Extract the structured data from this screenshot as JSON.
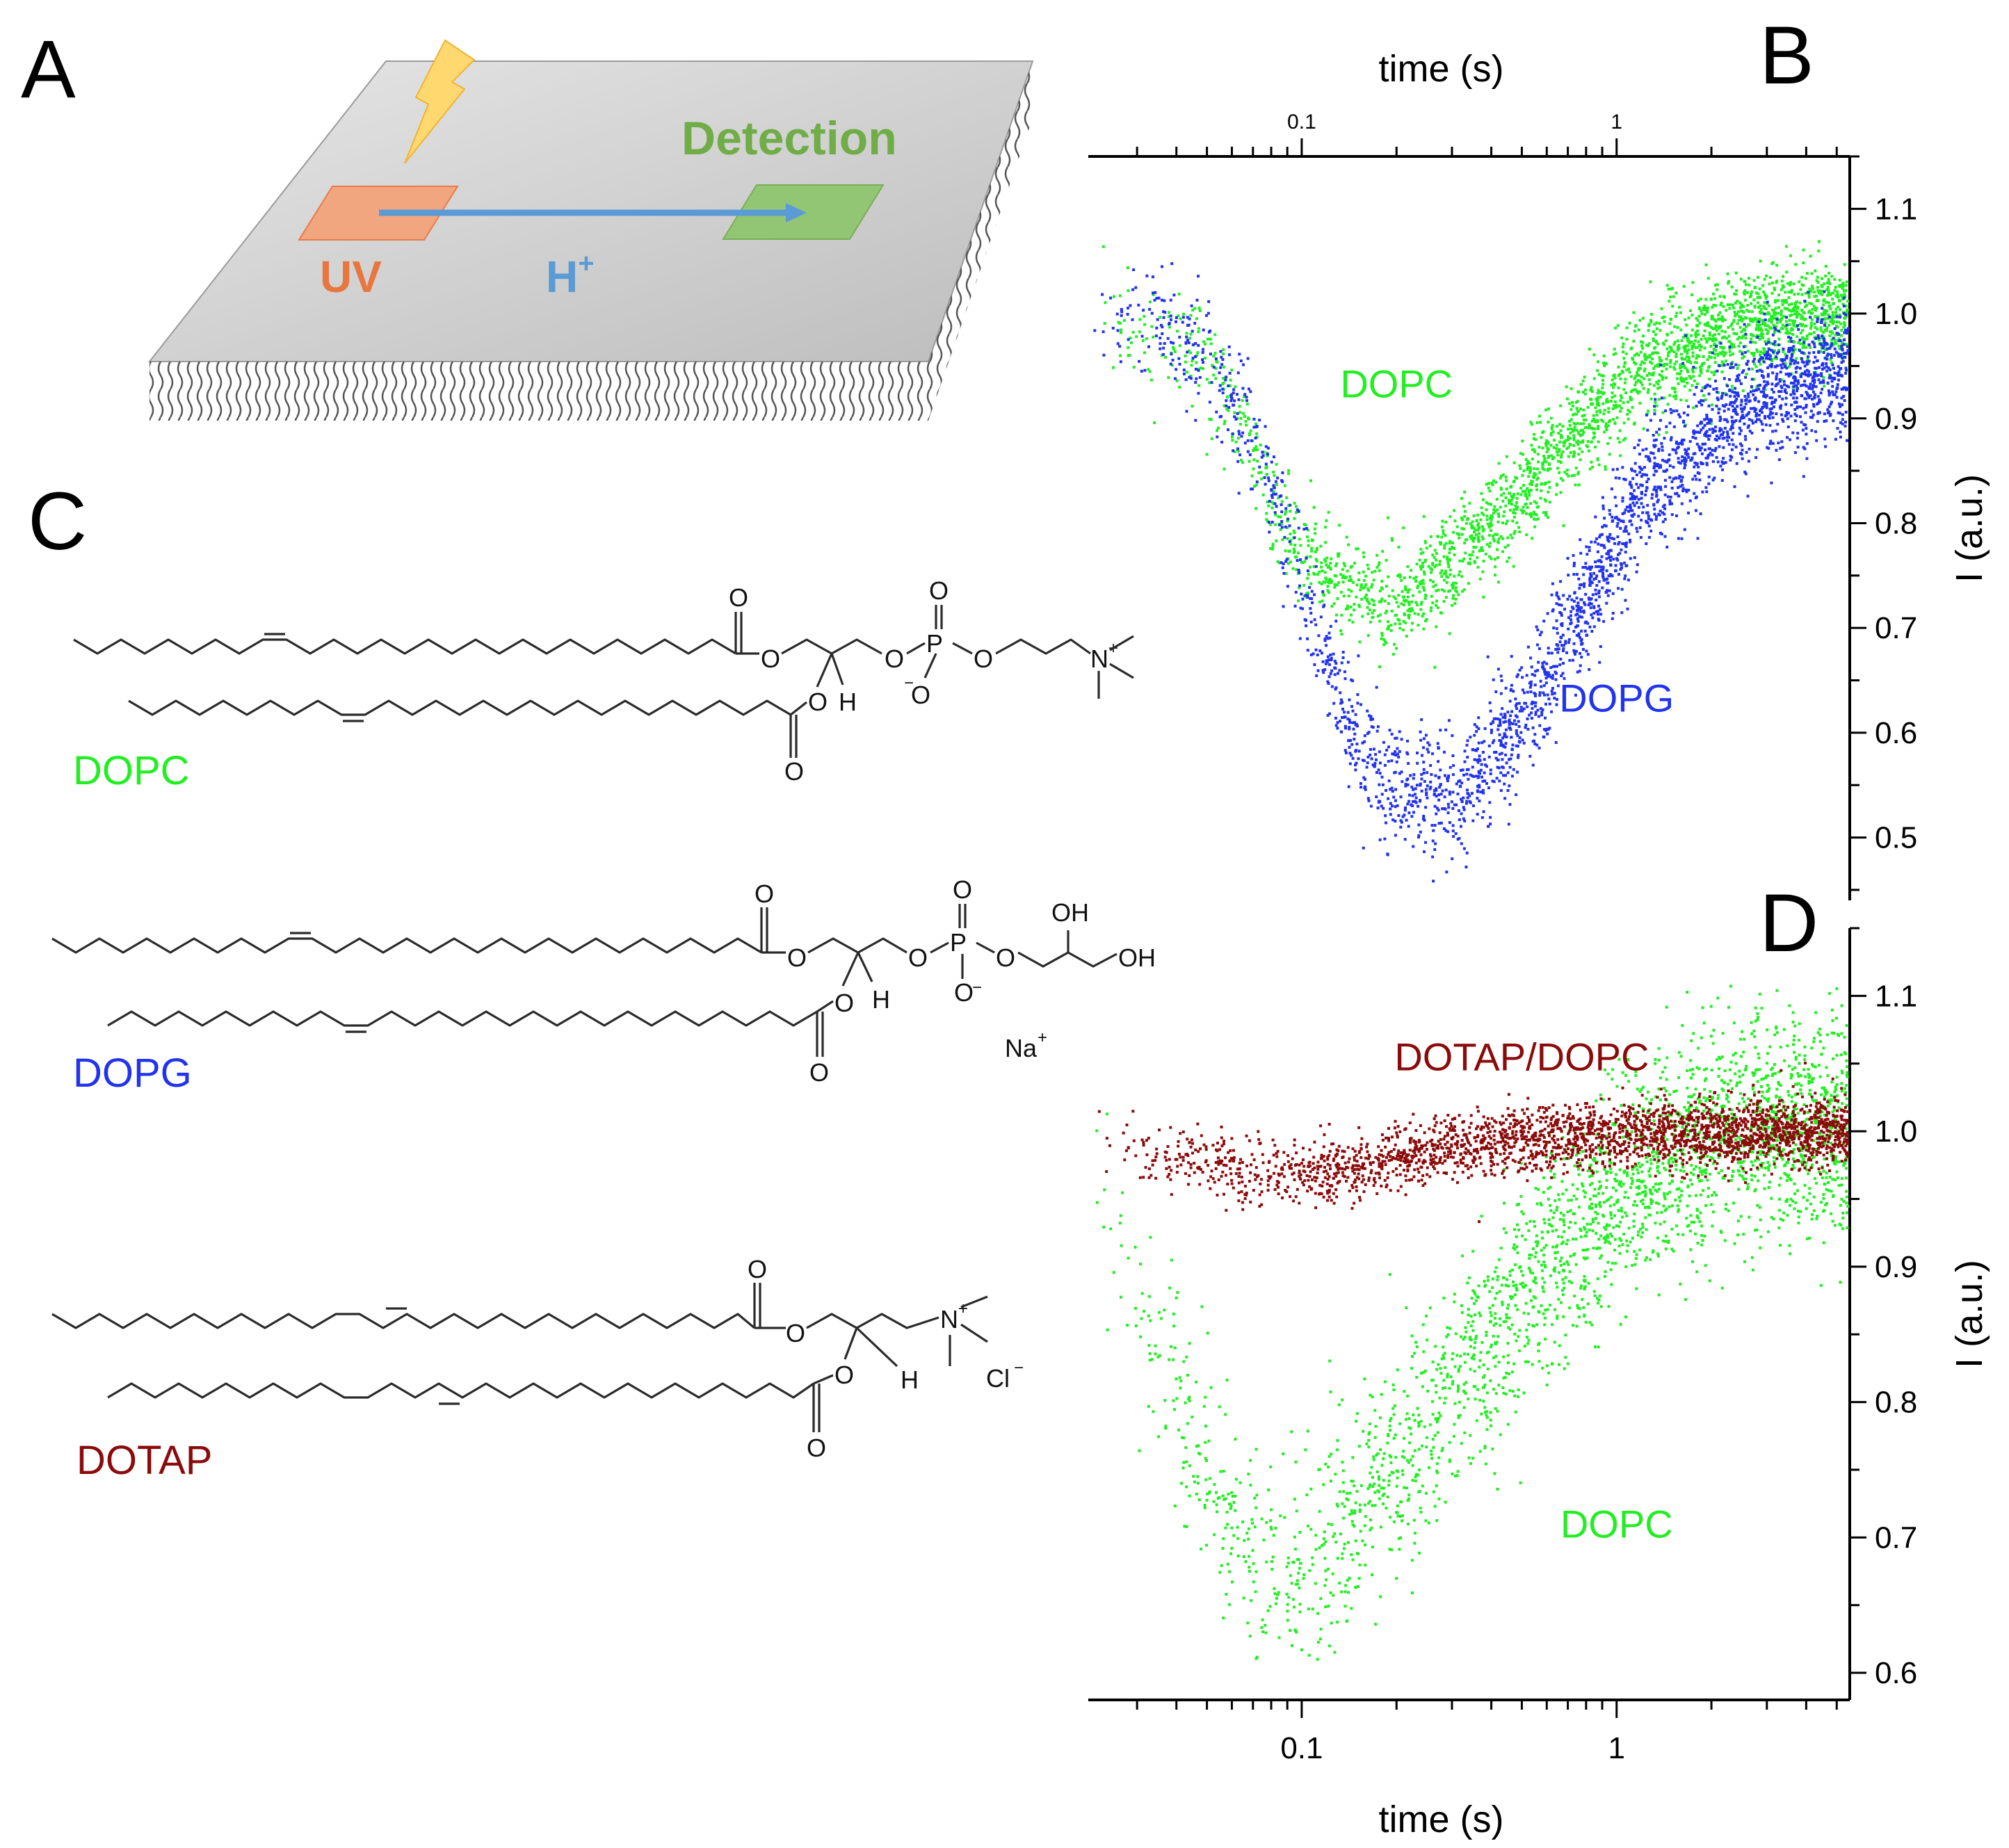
{
  "panels": {
    "a": "A",
    "b": "B",
    "c": "C",
    "d": "D"
  },
  "schematic": {
    "uv_label": "UV",
    "proton_label": "H",
    "proton_charge": "+",
    "detection_label": "Detection",
    "colors": {
      "uv": "#e8773f",
      "proton": "#5b9bd5",
      "detection": "#70ad47",
      "bolt": "#ffcc4d"
    }
  },
  "structures": {
    "dopc": {
      "name": "DOPC",
      "color": "#22ee22"
    },
    "dopg": {
      "name": "DOPG",
      "color": "#2233ee"
    },
    "dotap": {
      "name": "DOTAP",
      "color": "#8b0a0a"
    },
    "atoms": {
      "O": "O",
      "H": "H",
      "P": "P",
      "N": "N",
      "OH": "OH",
      "Na": "Na",
      "Cl": "Cl",
      "plus": "+",
      "minus": "−"
    }
  },
  "chart_data": [
    {
      "id": "B",
      "type": "scatter",
      "x_scale": "log",
      "x_axis_position": "top",
      "y_axis_position": "right",
      "xlabel": "time (s)",
      "ylabel": "I (a.u.)",
      "xlim": [
        0.021,
        5.5
      ],
      "ylim": [
        0.44,
        1.15
      ],
      "xticks": [
        0.1,
        1
      ],
      "xtick_labels": [
        "0.1",
        "1"
      ],
      "yticks": [
        0.5,
        0.6,
        0.7,
        0.8,
        0.9,
        1.0,
        1.1
      ],
      "ytick_labels": [
        "0.5",
        "0.6",
        "0.7",
        "0.8",
        "0.9",
        "1.0",
        "1.1"
      ],
      "series": [
        {
          "name": "DOPC",
          "color": "#22ee22",
          "noise": 0.025,
          "points": [
            [
              0.021,
              1.0
            ],
            [
              0.03,
              0.99
            ],
            [
              0.045,
              0.97
            ],
            [
              0.06,
              0.91
            ],
            [
              0.08,
              0.82
            ],
            [
              0.1,
              0.77
            ],
            [
              0.15,
              0.735
            ],
            [
              0.2,
              0.725
            ],
            [
              0.3,
              0.76
            ],
            [
              0.5,
              0.83
            ],
            [
              0.8,
              0.9
            ],
            [
              1.2,
              0.95
            ],
            [
              2,
              0.98
            ],
            [
              3,
              0.995
            ],
            [
              5.5,
              1.0
            ]
          ]
        },
        {
          "name": "DOPG",
          "color": "#2233ee",
          "noise": 0.03,
          "points": [
            [
              0.021,
              1.0
            ],
            [
              0.035,
              0.99
            ],
            [
              0.05,
              0.96
            ],
            [
              0.07,
              0.88
            ],
            [
              0.09,
              0.78
            ],
            [
              0.12,
              0.67
            ],
            [
              0.15,
              0.59
            ],
            [
              0.2,
              0.55
            ],
            [
              0.3,
              0.54
            ],
            [
              0.5,
              0.61
            ],
            [
              0.8,
              0.73
            ],
            [
              1.2,
              0.83
            ],
            [
              2,
              0.89
            ],
            [
              3,
              0.93
            ],
            [
              5.5,
              0.95
            ]
          ]
        }
      ],
      "annotations": [
        {
          "text": "DOPC",
          "color": "#22ee22",
          "x": 0.2,
          "y": 0.92
        },
        {
          "text": "DOPG",
          "color": "#2233ee",
          "x": 1.0,
          "y": 0.62
        }
      ]
    },
    {
      "id": "D",
      "type": "scatter",
      "x_scale": "log",
      "x_axis_position": "bottom",
      "y_axis_position": "right",
      "xlabel": "time (s)",
      "ylabel": "I (a.u.)",
      "xlim": [
        0.021,
        5.5
      ],
      "ylim": [
        0.58,
        1.15
      ],
      "xticks": [
        0.1,
        1
      ],
      "xtick_labels": [
        "0.1",
        "1"
      ],
      "yticks": [
        0.6,
        0.7,
        0.8,
        0.9,
        1.0,
        1.1
      ],
      "ytick_labels": [
        "0.6",
        "0.7",
        "0.8",
        "0.9",
        "1.0",
        "1.1"
      ],
      "series": [
        {
          "name": "DOPC",
          "color": "#22ee22",
          "noise": 0.04,
          "points": [
            [
              0.021,
              0.99
            ],
            [
              0.025,
              0.93
            ],
            [
              0.03,
              0.87
            ],
            [
              0.04,
              0.8
            ],
            [
              0.05,
              0.74
            ],
            [
              0.06,
              0.7
            ],
            [
              0.08,
              0.68
            ],
            [
              0.1,
              0.68
            ],
            [
              0.15,
              0.72
            ],
            [
              0.2,
              0.76
            ],
            [
              0.3,
              0.81
            ],
            [
              0.5,
              0.88
            ],
            [
              0.8,
              0.93
            ],
            [
              1.2,
              0.97
            ],
            [
              2,
              1.0
            ],
            [
              3,
              1.01
            ],
            [
              5.5,
              1.0
            ]
          ]
        },
        {
          "name": "DOTAP/DOPC",
          "color": "#8b0a0a",
          "noise": 0.012,
          "points": [
            [
              0.021,
              1.0
            ],
            [
              0.03,
              0.985
            ],
            [
              0.05,
              0.975
            ],
            [
              0.08,
              0.97
            ],
            [
              0.1,
              0.968
            ],
            [
              0.15,
              0.975
            ],
            [
              0.2,
              0.98
            ],
            [
              0.3,
              0.99
            ],
            [
              0.5,
              0.995
            ],
            [
              1,
              1.0
            ],
            [
              5.5,
              1.0
            ]
          ]
        }
      ],
      "annotations": [
        {
          "text": "DOTAP/DOPC",
          "color": "#8b0a0a",
          "x": 0.5,
          "y": 1.045
        },
        {
          "text": "DOPC",
          "color": "#22ee22",
          "x": 1.0,
          "y": 0.7
        }
      ]
    }
  ]
}
